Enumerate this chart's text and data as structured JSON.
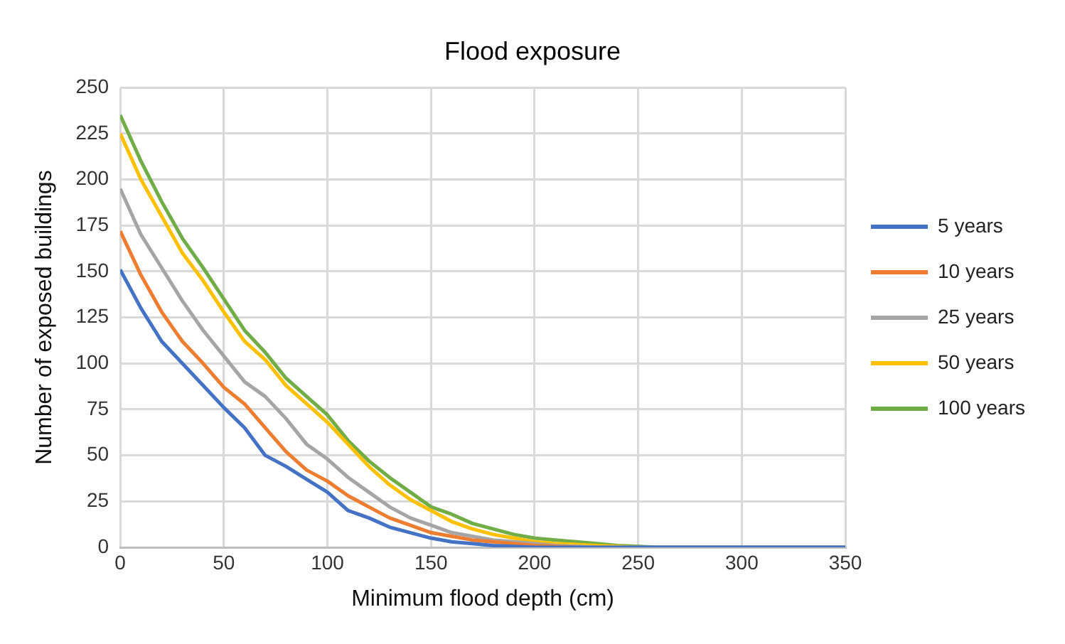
{
  "chart_data": {
    "type": "line",
    "title": "Flood exposure",
    "xlabel": "Minimum flood depth (cm)",
    "ylabel": "Number of exposed buildings",
    "x": [
      0,
      10,
      20,
      30,
      40,
      50,
      60,
      70,
      80,
      90,
      100,
      110,
      120,
      130,
      140,
      150,
      160,
      170,
      180,
      190,
      200,
      210,
      220,
      230,
      240,
      250,
      260,
      350
    ],
    "series": [
      {
        "name": "5 years",
        "color": "#4472c4",
        "values": [
          151,
          130,
          112,
          100,
          88,
          76,
          65,
          50,
          44,
          37,
          30,
          20,
          16,
          11,
          8,
          5,
          3,
          2,
          1,
          0.5,
          0,
          0,
          0,
          0,
          0,
          0,
          0,
          0
        ]
      },
      {
        "name": "10 years",
        "color": "#ed7d31",
        "values": [
          172,
          148,
          128,
          112,
          100,
          87,
          78,
          65,
          52,
          42,
          36,
          28,
          22,
          16,
          12,
          8,
          6,
          4,
          3,
          2,
          1,
          0.5,
          0,
          null,
          null,
          null,
          null,
          null
        ]
      },
      {
        "name": "25 years",
        "color": "#a5a5a5",
        "values": [
          195,
          170,
          152,
          134,
          118,
          104,
          90,
          82,
          70,
          56,
          48,
          38,
          30,
          22,
          16,
          12,
          8,
          6,
          4,
          3,
          2,
          1,
          0.5,
          0,
          0,
          0,
          0,
          0
        ]
      },
      {
        "name": "50 years",
        "color": "#ffc000",
        "values": [
          225,
          200,
          180,
          160,
          145,
          128,
          112,
          102,
          88,
          78,
          68,
          56,
          44,
          34,
          26,
          20,
          14,
          10,
          7,
          5,
          3,
          2,
          1.5,
          1,
          0.5,
          0,
          null,
          null
        ]
      },
      {
        "name": "100 years",
        "color": "#70ad47",
        "values": [
          235,
          210,
          188,
          168,
          152,
          135,
          118,
          106,
          92,
          82,
          72,
          58,
          47,
          38,
          30,
          22,
          18,
          13,
          10,
          7,
          5,
          4,
          3,
          2,
          1,
          0.5,
          0,
          0
        ]
      }
    ],
    "xlim": [
      0,
      350
    ],
    "xticks": [
      0,
      50,
      100,
      150,
      200,
      250,
      300,
      350
    ],
    "ylim": [
      0,
      250
    ],
    "yticks": [
      0,
      25,
      50,
      75,
      100,
      125,
      150,
      175,
      200,
      225,
      250
    ],
    "grid": true,
    "legend": "right",
    "marker": "none",
    "line_style": "solid"
  }
}
